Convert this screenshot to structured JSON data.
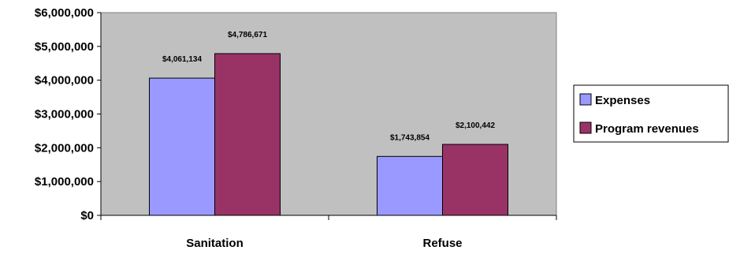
{
  "chart_data": {
    "type": "bar",
    "categories": [
      "Sanitation",
      "Refuse"
    ],
    "series": [
      {
        "name": "Expenses",
        "values": [
          4061134,
          1743854
        ],
        "labels": [
          "$4,061,134",
          "$1,743,854"
        ],
        "color": "#9999FF"
      },
      {
        "name": "Program revenues",
        "values": [
          4786671,
          2100442
        ],
        "labels": [
          "$4,786,671",
          "$2,100,442"
        ],
        "color": "#993366"
      }
    ],
    "y_ticks": [
      "$0",
      "$1,000,000",
      "$2,000,000",
      "$3,000,000",
      "$4,000,000",
      "$5,000,000",
      "$6,000,000"
    ],
    "ylim": [
      0,
      6000000
    ],
    "plot_background": "#C0C0C0",
    "grid": false,
    "legend_position": "right"
  }
}
